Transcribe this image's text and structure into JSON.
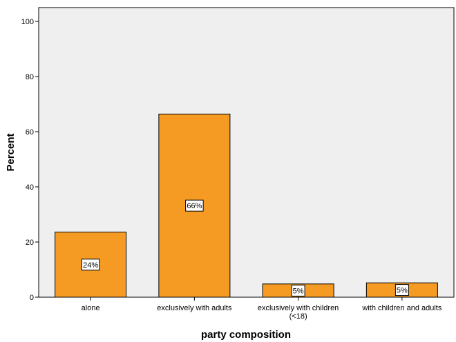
{
  "chart_data": {
    "type": "bar",
    "title": "",
    "xlabel": "party composition",
    "ylabel": "Percent",
    "ylim": [
      0,
      105
    ],
    "yticks": [
      0,
      20,
      40,
      60,
      80,
      100
    ],
    "grid": false,
    "categories": [
      [
        "alone"
      ],
      [
        "exclusively with adults"
      ],
      [
        "exclusively with children",
        "(<18)"
      ],
      [
        "with children and adults"
      ]
    ],
    "values": [
      23.6,
      66.4,
      4.8,
      5.2
    ],
    "data_labels": [
      "24%",
      "66%",
      "5%",
      "5%"
    ],
    "colors": {
      "bar_fill": "#F59A23",
      "bar_stroke": "#000000",
      "plot_background": "#EFEFEF",
      "label_box": "#FFFFFF"
    }
  }
}
